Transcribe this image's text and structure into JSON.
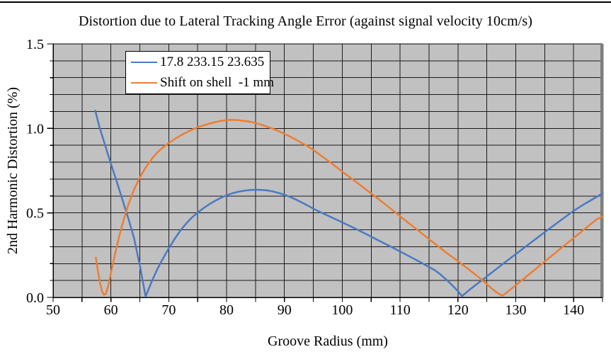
{
  "chart_data": {
    "type": "line",
    "title": "Distortion due to Lateral Tracking Angle Error (against signal velocity 10cm/s)",
    "xlabel": "Groove Radius (mm)",
    "ylabel": "2nd Harmonic Distortion (%)",
    "xlim": [
      50,
      145
    ],
    "ylim": [
      0,
      1.5
    ],
    "x_major_ticks": [
      50,
      60,
      70,
      80,
      90,
      100,
      110,
      120,
      130,
      140
    ],
    "x_minor_step": 5,
    "y_major_ticks": [
      {
        "label": "0.0",
        "value": 0.0
      },
      {
        "label": "0.5",
        "value": 0.5
      },
      {
        "label": "1.0",
        "value": 1.0
      },
      {
        "label": "1.5",
        "value": 1.5
      }
    ],
    "y_minor_step": 0.1,
    "grid": "on-minor-both",
    "legend_position": "inside-top-left",
    "colors": {
      "plot_bg": "#c1c1c1",
      "grid": "#1b1b1b",
      "axis": "#000000",
      "right_border": "#7e7e7e",
      "series_blue": "#4a7ac2",
      "series_orange": "#ee7d31"
    },
    "series": [
      {
        "name": "17.8 233.15 23.635",
        "color": "#4a7ac2",
        "points": [
          [
            57.3,
            1.105
          ],
          [
            58,
            1.01
          ],
          [
            59,
            0.9
          ],
          [
            60,
            0.79
          ],
          [
            61,
            0.685
          ],
          [
            62,
            0.578
          ],
          [
            63,
            0.468
          ],
          [
            64,
            0.35
          ],
          [
            65,
            0.19
          ],
          [
            66,
            0.005
          ],
          [
            67,
            0.09
          ],
          [
            68,
            0.165
          ],
          [
            69,
            0.23
          ],
          [
            70,
            0.29
          ],
          [
            71,
            0.345
          ],
          [
            72,
            0.395
          ],
          [
            73,
            0.437
          ],
          [
            74,
            0.472
          ],
          [
            75,
            0.502
          ],
          [
            76,
            0.528
          ],
          [
            77,
            0.551
          ],
          [
            78,
            0.571
          ],
          [
            79,
            0.589
          ],
          [
            80,
            0.604
          ],
          [
            81,
            0.616
          ],
          [
            82,
            0.625
          ],
          [
            83,
            0.631
          ],
          [
            84,
            0.635
          ],
          [
            85,
            0.637
          ],
          [
            86,
            0.636
          ],
          [
            87,
            0.633
          ],
          [
            88,
            0.627
          ],
          [
            89,
            0.618
          ],
          [
            90,
            0.607
          ],
          [
            91,
            0.594
          ],
          [
            92,
            0.579
          ],
          [
            93,
            0.562
          ],
          [
            94,
            0.544
          ],
          [
            95,
            0.525
          ],
          [
            96,
            0.508
          ],
          [
            98,
            0.476
          ],
          [
            100,
            0.444
          ],
          [
            102,
            0.411
          ],
          [
            104,
            0.377
          ],
          [
            106,
            0.342
          ],
          [
            108,
            0.307
          ],
          [
            110,
            0.272
          ],
          [
            112,
            0.236
          ],
          [
            114,
            0.199
          ],
          [
            116,
            0.161
          ],
          [
            117,
            0.135
          ],
          [
            118,
            0.105
          ],
          [
            119,
            0.072
          ],
          [
            120,
            0.037
          ],
          [
            120.7,
            0.008
          ],
          [
            121.5,
            0.03
          ],
          [
            122,
            0.045
          ],
          [
            124,
            0.098
          ],
          [
            126,
            0.151
          ],
          [
            128,
            0.204
          ],
          [
            130,
            0.256
          ],
          [
            132,
            0.308
          ],
          [
            134,
            0.36
          ],
          [
            136,
            0.411
          ],
          [
            138,
            0.462
          ],
          [
            140,
            0.512
          ],
          [
            142,
            0.555
          ],
          [
            144,
            0.595
          ],
          [
            145,
            0.615
          ]
        ]
      },
      {
        "name": "Shift on shell  -1 mm",
        "color": "#ee7d31",
        "points": [
          [
            57.4,
            0.235
          ],
          [
            57.8,
            0.145
          ],
          [
            58.2,
            0.072
          ],
          [
            58.5,
            0.033
          ],
          [
            58.8,
            0.016
          ],
          [
            59.1,
            0.02
          ],
          [
            59.5,
            0.062
          ],
          [
            60,
            0.145
          ],
          [
            60.5,
            0.225
          ],
          [
            61,
            0.3
          ],
          [
            61.5,
            0.37
          ],
          [
            62,
            0.435
          ],
          [
            63,
            0.548
          ],
          [
            64,
            0.638
          ],
          [
            65,
            0.71
          ],
          [
            66,
            0.768
          ],
          [
            67,
            0.817
          ],
          [
            68,
            0.857
          ],
          [
            69,
            0.888
          ],
          [
            70,
            0.913
          ],
          [
            71,
            0.936
          ],
          [
            72,
            0.957
          ],
          [
            73,
            0.976
          ],
          [
            74,
            0.992
          ],
          [
            75,
            1.006
          ],
          [
            76,
            1.018
          ],
          [
            77,
            1.028
          ],
          [
            78,
            1.037
          ],
          [
            79,
            1.044
          ],
          [
            80,
            1.049
          ],
          [
            81,
            1.051
          ],
          [
            82,
            1.049
          ],
          [
            83,
            1.044
          ],
          [
            84,
            1.04
          ],
          [
            85,
            1.032
          ],
          [
            86,
            1.022
          ],
          [
            87,
            1.01
          ],
          [
            88,
            0.998
          ],
          [
            89,
            0.984
          ],
          [
            90,
            0.968
          ],
          [
            91,
            0.951
          ],
          [
            92,
            0.933
          ],
          [
            93,
            0.914
          ],
          [
            94,
            0.895
          ],
          [
            95,
            0.872
          ],
          [
            96,
            0.847
          ],
          [
            98,
            0.797
          ],
          [
            100,
            0.745
          ],
          [
            102,
            0.693
          ],
          [
            104,
            0.641
          ],
          [
            105,
            0.615
          ],
          [
            106,
            0.589
          ],
          [
            108,
            0.535
          ],
          [
            110,
            0.48
          ],
          [
            112,
            0.426
          ],
          [
            114,
            0.372
          ],
          [
            115,
            0.345
          ],
          [
            116,
            0.318
          ],
          [
            118,
            0.264
          ],
          [
            120,
            0.215
          ],
          [
            122,
            0.162
          ],
          [
            124,
            0.108
          ],
          [
            126,
            0.048
          ],
          [
            127,
            0.022
          ],
          [
            127.7,
            0.01
          ],
          [
            128.5,
            0.03
          ],
          [
            130,
            0.072
          ],
          [
            132,
            0.128
          ],
          [
            134,
            0.184
          ],
          [
            136,
            0.24
          ],
          [
            138,
            0.296
          ],
          [
            140,
            0.351
          ],
          [
            142,
            0.407
          ],
          [
            144,
            0.462
          ],
          [
            145,
            0.478
          ]
        ]
      }
    ]
  }
}
